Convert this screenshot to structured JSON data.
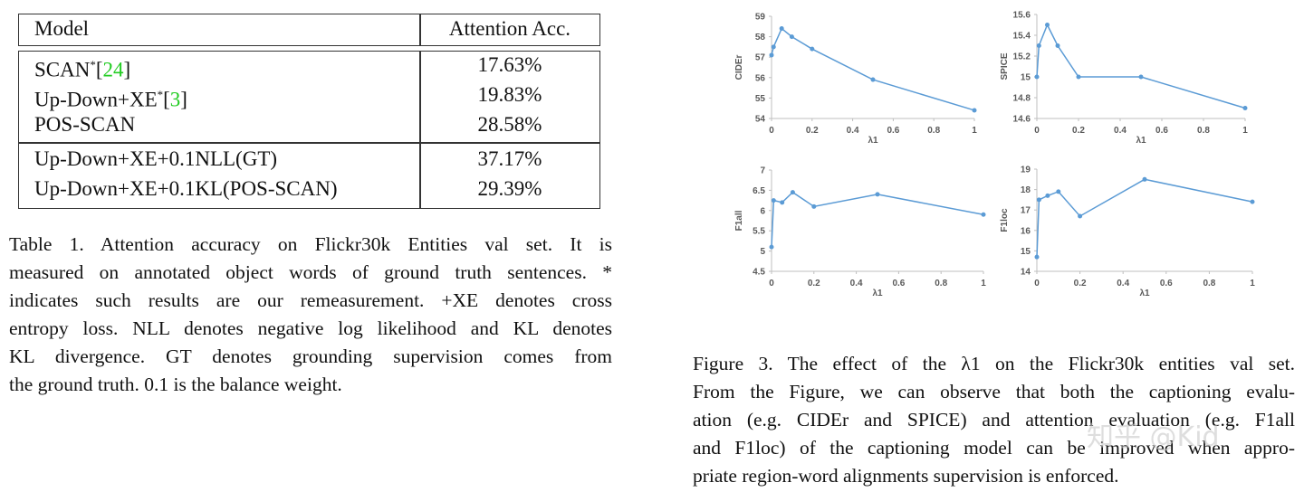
{
  "table": {
    "header": [
      "Model",
      "Attention Acc."
    ],
    "groups": [
      [
        {
          "model": [
            {
              "text": "SCAN"
            },
            {
              "text": "*",
              "style": "sup"
            },
            {
              "text": "["
            },
            {
              "text": "24",
              "style": "ref"
            },
            {
              "text": "]"
            }
          ],
          "acc": "17.63%"
        },
        {
          "model": [
            {
              "text": "Up-Down+XE"
            },
            {
              "text": "*",
              "style": "sup"
            },
            {
              "text": "["
            },
            {
              "text": "3",
              "style": "ref"
            },
            {
              "text": "]"
            }
          ],
          "acc": "19.83%"
        },
        {
          "model": [
            {
              "text": "POS-SCAN"
            }
          ],
          "acc": "28.58%"
        }
      ],
      [
        {
          "model": [
            {
              "text": "Up-Down+XE+0.1NLL(GT)"
            }
          ],
          "acc": "37.17%"
        },
        {
          "model": [
            {
              "text": "Up-Down+XE+0.1KL(POS-SCAN)"
            }
          ],
          "acc": "29.39%"
        }
      ]
    ]
  },
  "table_caption": [
    "Table 1. Attention accuracy on Flickr30k Entities val set.  It is",
    "measured on annotated object words of ground truth sentences. *",
    "indicates such results are our remeasurement. +XE denotes cross",
    "entropy loss. NLL denotes negative log likelihood and KL denotes",
    "KL divergence.  GT denotes grounding supervision comes from",
    "the ground truth. 0.1 is the balance weight."
  ],
  "figure_caption": [
    "Figure 3. The effect of the λ1 on the Flickr30k entities val set.",
    "From the Figure, we can observe that both the captioning evalu-",
    "ation (e.g. CIDEr and SPICE) and attention evaluation (e.g. F1all",
    "and F1loc) of the captioning model can be improved when appro-",
    "priate region-word alignments supervision is enforced."
  ],
  "watermark": "知乎 @Kid",
  "chart_data": [
    {
      "type": "line",
      "ylabel": "CIDEr",
      "xlabel": "λ1",
      "color": "#5b9bd5",
      "x": [
        0,
        0.01,
        0.05,
        0.1,
        0.2,
        0.5,
        1
      ],
      "values": [
        57.1,
        57.5,
        58.4,
        58.0,
        57.4,
        55.9,
        54.4
      ],
      "xlim": [
        0,
        1
      ],
      "xticks": [
        0,
        0.2,
        0.4,
        0.6,
        0.8,
        1
      ],
      "ylim": [
        54,
        59
      ],
      "yticks": [
        54,
        55,
        56,
        57,
        58,
        59
      ]
    },
    {
      "type": "line",
      "ylabel": "SPICE",
      "xlabel": "λ1",
      "color": "#5b9bd5",
      "x": [
        0,
        0.01,
        0.05,
        0.1,
        0.2,
        0.5,
        1
      ],
      "values": [
        15.0,
        15.3,
        15.5,
        15.3,
        15.0,
        15.0,
        14.7
      ],
      "xlim": [
        0,
        1
      ],
      "xticks": [
        0,
        0.2,
        0.4,
        0.6,
        0.8,
        1
      ],
      "ylim": [
        14.6,
        15.6
      ],
      "yticks": [
        14.6,
        14.8,
        15,
        15.2,
        15.4,
        15.6
      ]
    },
    {
      "type": "line",
      "ylabel": "F1all",
      "xlabel": "λ1",
      "color": "#5b9bd5",
      "x": [
        0,
        0.01,
        0.05,
        0.1,
        0.2,
        0.5,
        1
      ],
      "values": [
        5.1,
        6.25,
        6.2,
        6.45,
        6.1,
        6.4,
        5.9
      ],
      "xlim": [
        0,
        1
      ],
      "xticks": [
        0,
        0.2,
        0.4,
        0.6,
        0.8,
        1
      ],
      "ylim": [
        4.5,
        7
      ],
      "yticks": [
        4.5,
        5,
        5.5,
        6,
        6.5,
        7
      ]
    },
    {
      "type": "line",
      "ylabel": "F1loc",
      "xlabel": "λ1",
      "color": "#5b9bd5",
      "x": [
        0,
        0.01,
        0.05,
        0.1,
        0.2,
        0.5,
        1
      ],
      "values": [
        14.7,
        17.5,
        17.7,
        17.9,
        16.7,
        18.5,
        17.4
      ],
      "xlim": [
        0,
        1
      ],
      "xticks": [
        0,
        0.2,
        0.4,
        0.6,
        0.8,
        1
      ],
      "ylim": [
        14,
        19
      ],
      "yticks": [
        14,
        15,
        16,
        17,
        18,
        19
      ]
    }
  ]
}
